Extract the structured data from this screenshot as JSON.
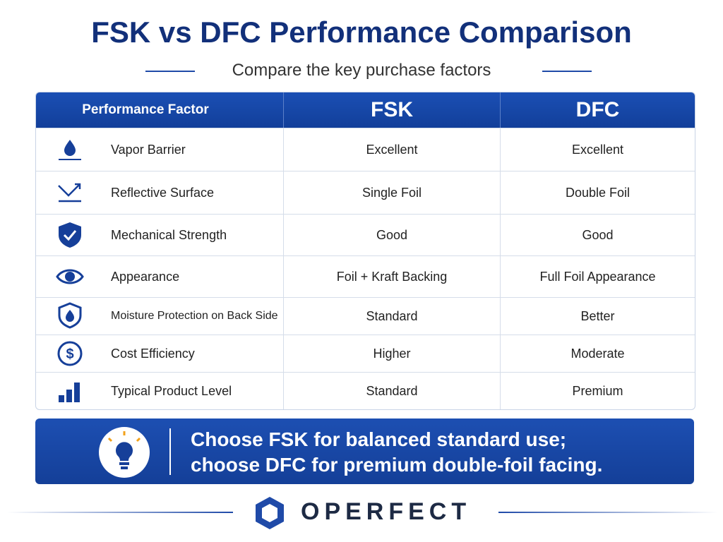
{
  "header": {
    "title": "FSK vs DFC Performance Comparison",
    "subtitle": "Compare the key purchase factors"
  },
  "table": {
    "columns": [
      "Performance Factor",
      "FSK",
      "DFC"
    ],
    "rows": [
      [
        "Vapor Barrier",
        "Excellent",
        "Excellent"
      ],
      [
        "Reflective Surface",
        "Single Foil",
        "Double Foil"
      ],
      [
        "Mechanical Strength",
        "Good",
        "Good"
      ],
      [
        "Appearance",
        "Foil + Kraft Backing",
        "Full Foil Appearance"
      ],
      [
        "Moisture Protection on Back Side",
        "Standard",
        "Better"
      ],
      [
        "Cost Efficiency",
        "Higher",
        "Moderate"
      ],
      [
        "Typical Product Level",
        "Standard",
        "Premium"
      ]
    ]
  },
  "callout": {
    "lines": [
      "Choose FSK for balanced standard use;",
      "choose DFC for premium double-foil facing."
    ]
  },
  "footer": {
    "brand": "OPERFECT"
  }
}
